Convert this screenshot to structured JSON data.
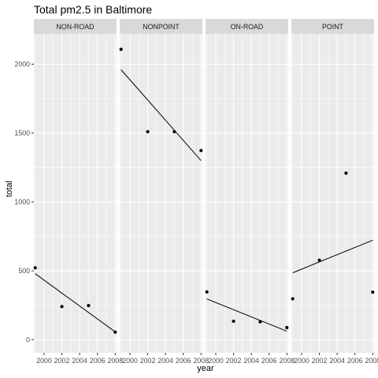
{
  "chart_data": {
    "type": "scatter",
    "title": "Total pm2.5 in Baltimore",
    "xlabel": "year",
    "ylabel": "total",
    "xlim": [
      1998.85,
      2008.15
    ],
    "ylim": [
      -95,
      2220
    ],
    "x_ticks": [
      2000,
      2002,
      2004,
      2006,
      2008
    ],
    "x_tick_labels": [
      "2000",
      "2002",
      "2004",
      "2006",
      "2008"
    ],
    "y_ticks": [
      0,
      500,
      1000,
      1500,
      2000
    ],
    "y_tick_labels": [
      "0",
      "500",
      "1000",
      "1500",
      "2000"
    ],
    "grid": true,
    "trendline": "linear fit per panel",
    "panels": [
      {
        "name": "NON-ROAD",
        "points": [
          {
            "x": 1999,
            "y": 522
          },
          {
            "x": 2002,
            "y": 241
          },
          {
            "x": 2005,
            "y": 248
          },
          {
            "x": 2008,
            "y": 55
          }
        ],
        "fit": {
          "x": [
            1999,
            2008
          ],
          "y": [
            479,
            57
          ]
        }
      },
      {
        "name": "NONPOINT",
        "points": [
          {
            "x": 1999,
            "y": 2108
          },
          {
            "x": 2002,
            "y": 1510
          },
          {
            "x": 2005,
            "y": 1510
          },
          {
            "x": 2008,
            "y": 1373
          }
        ],
        "fit": {
          "x": [
            1999,
            2008
          ],
          "y": [
            1960,
            1300
          ]
        }
      },
      {
        "name": "ON-ROAD",
        "points": [
          {
            "x": 1999,
            "y": 347
          },
          {
            "x": 2002,
            "y": 134
          },
          {
            "x": 2005,
            "y": 130
          },
          {
            "x": 2008,
            "y": 88
          }
        ],
        "fit": {
          "x": [
            1999,
            2008
          ],
          "y": [
            296,
            62
          ]
        }
      },
      {
        "name": "POINT",
        "points": [
          {
            "x": 1999,
            "y": 297
          },
          {
            "x": 2002,
            "y": 577
          },
          {
            "x": 2005,
            "y": 1209
          },
          {
            "x": 2008,
            "y": 345
          }
        ],
        "fit": {
          "x": [
            1999,
            2008
          ],
          "y": [
            486,
            722
          ]
        }
      }
    ]
  }
}
